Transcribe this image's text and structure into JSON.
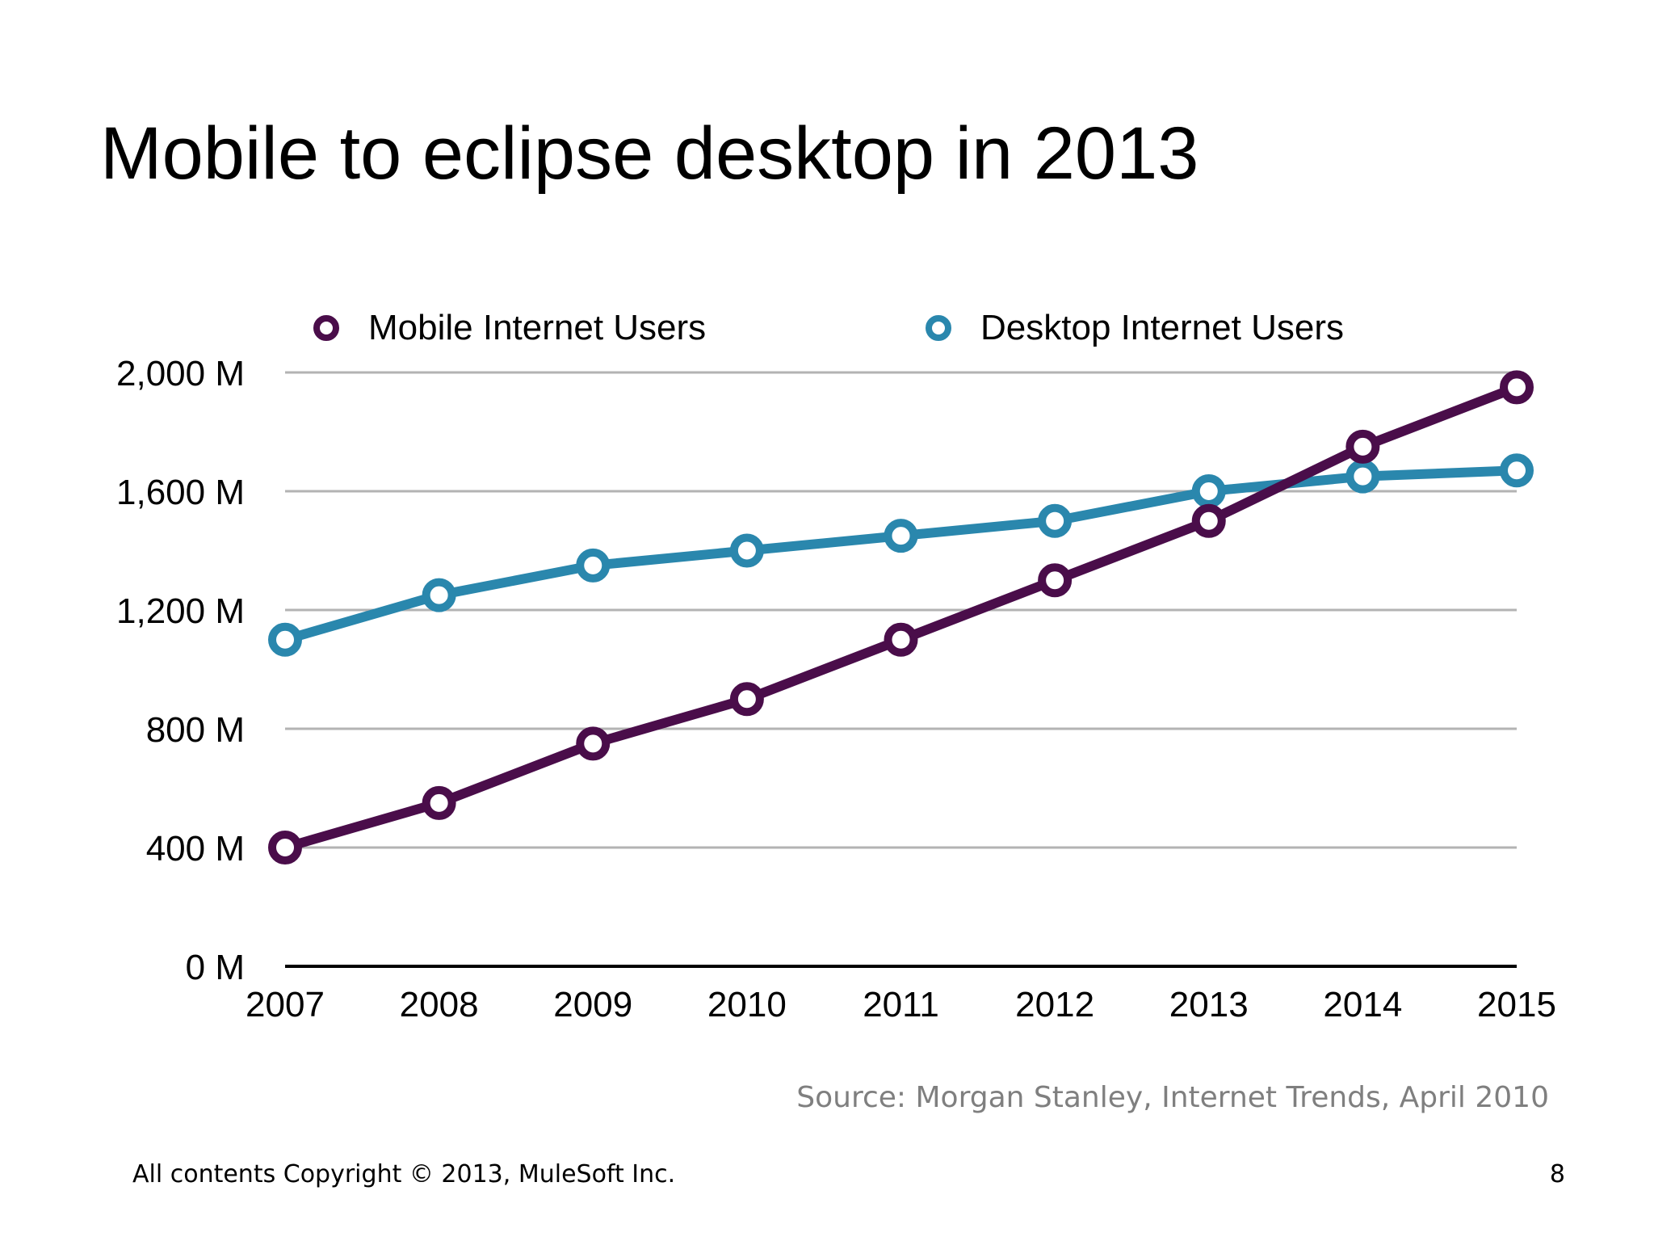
{
  "slide": {
    "title": "Mobile to eclipse desktop in 2013",
    "source": "Source: Morgan Stanley, Internet Trends, April 2010",
    "copyright": "All contents Copyright © 2013, MuleSoft Inc.",
    "page_number": "8"
  },
  "chart_data": {
    "type": "line",
    "title": "",
    "xlabel": "",
    "ylabel": "",
    "categories": [
      "2007",
      "2008",
      "2009",
      "2010",
      "2011",
      "2012",
      "2013",
      "2014",
      "2015"
    ],
    "series": [
      {
        "name": "Mobile Internet Users",
        "color": "#4a0d4a",
        "values": [
          400,
          550,
          750,
          900,
          1100,
          1300,
          1500,
          1750,
          1950
        ]
      },
      {
        "name": "Desktop Internet Users",
        "color": "#2a87ad",
        "values": [
          1100,
          1250,
          1350,
          1400,
          1450,
          1500,
          1600,
          1650,
          1670
        ]
      }
    ],
    "ylim": [
      0,
      2000
    ],
    "yticks": [
      0,
      400,
      800,
      1200,
      1600,
      2000
    ],
    "ytick_labels": [
      "0 M",
      "400 M",
      "800 M",
      "1,200 M",
      "1,600 M",
      "2,000 M"
    ],
    "grid": true,
    "legend_position": "top"
  }
}
